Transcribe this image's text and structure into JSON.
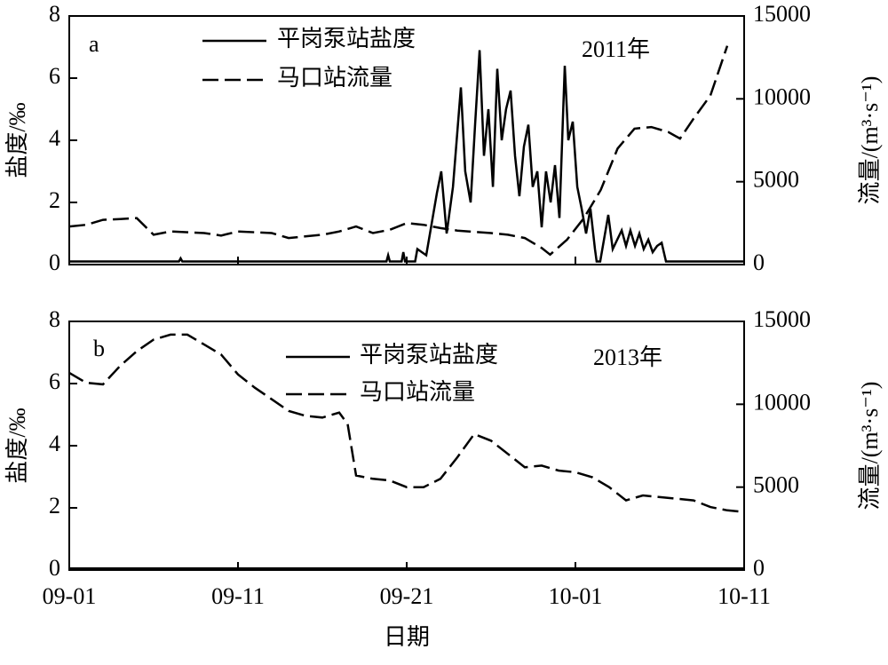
{
  "chart_data": [
    {
      "type": "line",
      "panel_label": "a",
      "annotation": "2011年",
      "ylabel": "盐度/‰",
      "y2label": "流量/(m³·s⁻¹)",
      "xlim": [
        0,
        40
      ],
      "ylim": [
        0,
        8
      ],
      "yticks": [
        0,
        2,
        4,
        6,
        8
      ],
      "y2lim": [
        0,
        15000
      ],
      "y2ticks": [
        0,
        5000,
        10000,
        15000
      ],
      "series": [
        {
          "name": "平岗泵站盐度",
          "color": "#000000",
          "dash": false,
          "x": [
            0,
            6.5,
            6.6,
            6.7,
            18.8,
            18.9,
            19.0,
            19.7,
            19.8,
            19.9,
            20.5,
            20.63,
            21.16,
            21.79,
            22.05,
            22.37,
            22.74,
            23.21,
            23.47,
            23.79,
            24.05,
            24.32,
            24.58,
            24.84,
            25.11,
            25.37,
            25.63,
            25.89,
            26.16,
            26.42,
            26.68,
            26.95,
            27.21,
            27.47,
            27.74,
            28.0,
            28.26,
            28.53,
            28.79,
            29.05,
            29.37,
            29.58,
            29.84,
            30.11,
            30.37,
            30.63,
            30.89,
            31.16,
            31.26,
            31.47,
            31.95,
            32.21,
            32.74,
            33.0,
            33.26,
            33.53,
            33.79,
            34.05,
            34.32,
            34.58,
            34.84,
            35.11,
            35.37,
            40
          ],
          "values": [
            0.1,
            0.1,
            0.2,
            0.1,
            0.1,
            0.3,
            0.1,
            0.1,
            0.4,
            0.1,
            0.1,
            0.5,
            0.3,
            2.3,
            3.0,
            1.0,
            2.5,
            5.7,
            3.0,
            2.0,
            4.5,
            6.9,
            3.5,
            5.0,
            2.5,
            6.3,
            4.0,
            5.0,
            5.6,
            3.5,
            2.2,
            3.8,
            4.5,
            2.5,
            3.0,
            1.2,
            3.0,
            2.0,
            3.2,
            1.5,
            6.4,
            4.0,
            4.6,
            2.5,
            1.8,
            1.0,
            1.8,
            0.5,
            0.1,
            0.1,
            1.6,
            0.5,
            1.1,
            0.6,
            1.1,
            0.6,
            1.0,
            0.5,
            0.8,
            0.4,
            0.6,
            0.7,
            0.1,
            0.1
          ]
        },
        {
          "name": "马口站流量",
          "color": "#000000",
          "dash": true,
          "axis": "y2",
          "x": [
            0,
            1,
            2,
            3,
            4,
            5,
            6,
            8,
            9,
            10,
            12,
            13,
            15,
            16,
            17,
            18,
            19,
            20,
            21,
            22,
            23,
            25,
            26,
            27,
            28,
            28.5,
            29.5,
            30.5,
            31.5,
            32.5,
            33.5,
            34.5,
            35.5,
            36.2,
            37,
            38,
            39
          ],
          "values": [
            2300,
            2400,
            2700,
            2750,
            2800,
            1800,
            2000,
            1900,
            1750,
            2000,
            1900,
            1600,
            1800,
            2000,
            2300,
            1900,
            2100,
            2500,
            2400,
            2200,
            2050,
            1900,
            1800,
            1600,
            1000,
            600,
            1500,
            2800,
            4500,
            7000,
            8200,
            8300,
            8000,
            7600,
            8800,
            10200,
            13200
          ]
        }
      ]
    },
    {
      "type": "line",
      "panel_label": "b",
      "annotation": "2013年",
      "ylabel": "盐度/‰",
      "y2label": "流量/(m³·s⁻¹)",
      "xlabel": "日期",
      "xlim": [
        0,
        40
      ],
      "xticks": [
        {
          "value": 0,
          "label": "09-01"
        },
        {
          "value": 10,
          "label": "09-11"
        },
        {
          "value": 20,
          "label": "09-21"
        },
        {
          "value": 30,
          "label": "10-01"
        },
        {
          "value": 40,
          "label": "10-11"
        }
      ],
      "ylim": [
        0,
        8
      ],
      "yticks": [
        0,
        2,
        4,
        6,
        8
      ],
      "y2lim": [
        0,
        15000
      ],
      "y2ticks": [
        0,
        5000,
        10000,
        15000
      ],
      "series": [
        {
          "name": "平岗泵站盐度",
          "color": "#000000",
          "dash": false,
          "x": [
            0,
            40
          ],
          "values": [
            0.05,
            0.05
          ]
        },
        {
          "name": "马口站流量",
          "color": "#000000",
          "dash": true,
          "axis": "y2",
          "x": [
            0,
            1,
            2,
            3,
            4,
            5,
            6,
            7,
            8,
            9,
            10,
            11,
            12,
            13,
            14,
            15,
            16,
            16.5,
            17,
            18,
            19,
            20,
            21,
            22,
            23,
            24,
            25,
            26,
            27,
            28,
            29,
            30,
            31,
            32,
            33,
            34,
            35,
            36,
            37,
            38,
            39,
            40
          ],
          "values": [
            11900,
            11300,
            11200,
            12300,
            13200,
            13900,
            14200,
            14200,
            13600,
            13000,
            11800,
            11000,
            10300,
            9600,
            9300,
            9200,
            9500,
            8800,
            5700,
            5500,
            5400,
            5000,
            5000,
            5500,
            6800,
            8200,
            7800,
            7000,
            6200,
            6300,
            6000,
            5900,
            5600,
            5000,
            4200,
            4500,
            4400,
            4300,
            4200,
            3800,
            3600,
            3500
          ]
        }
      ]
    }
  ]
}
